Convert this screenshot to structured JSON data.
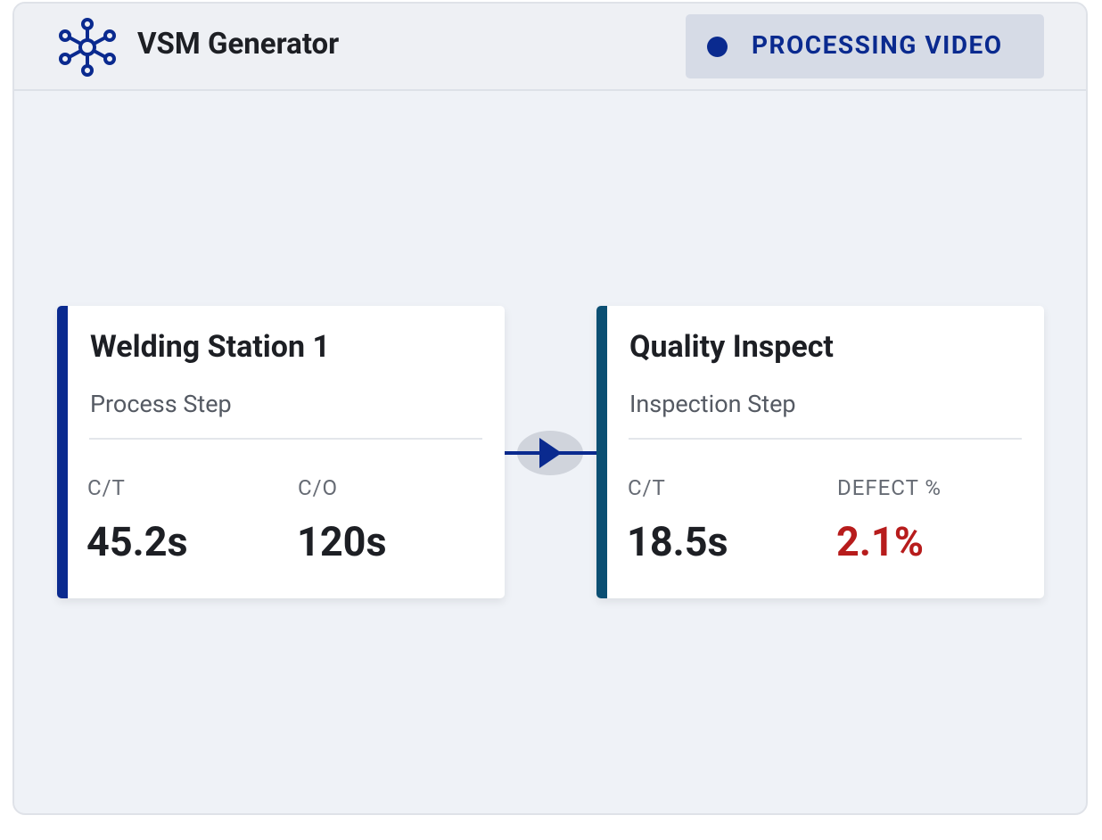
{
  "header": {
    "title": "VSM Generator",
    "status": "PROCESSING VIDEO"
  },
  "nodes": [
    {
      "title": "Welding Station 1",
      "subtitle": "Process Step",
      "metrics": [
        {
          "label": "C/T",
          "value": "45.2s"
        },
        {
          "label": "C/O",
          "value": "120s"
        }
      ]
    },
    {
      "title": "Quality Inspect",
      "subtitle": "Inspection Step",
      "metrics": [
        {
          "label": "C/T",
          "value": "18.5s"
        },
        {
          "label": "DEFECT %",
          "value": "2.1%"
        }
      ]
    }
  ]
}
